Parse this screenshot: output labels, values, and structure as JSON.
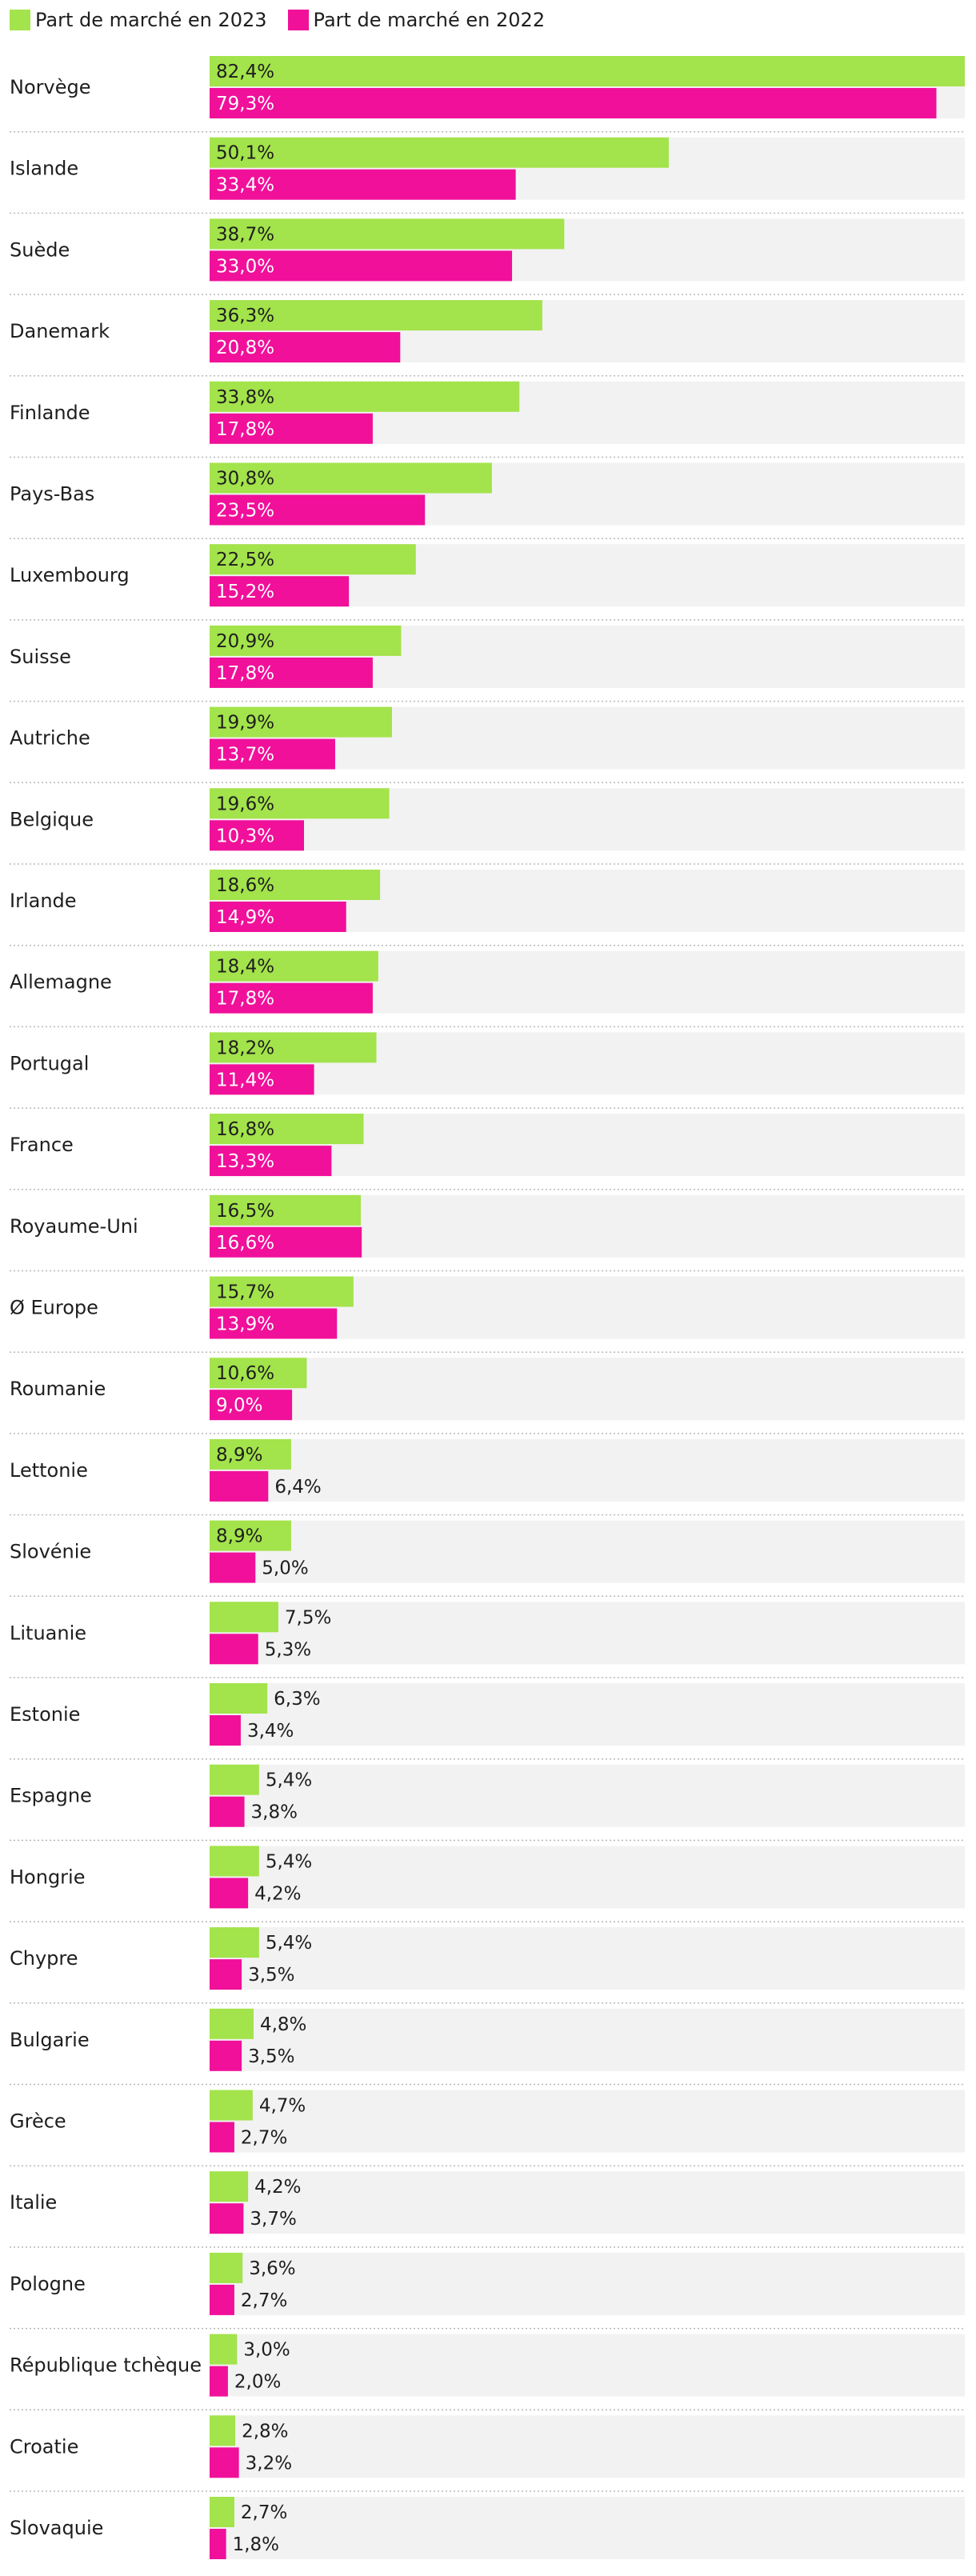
{
  "chart_data": {
    "type": "bar",
    "orientation": "horizontal",
    "title": "",
    "xlabel": "",
    "ylabel": "",
    "xlim": [
      0,
      82.4
    ],
    "grid": false,
    "legend_position": "top-left",
    "colors": {
      "series_2023": "#a3e34b",
      "series_2022": "#f0109a",
      "row_background": "#f2f2f2",
      "separator": "#b8b8b8",
      "text_dark": "#1e1e1e",
      "text_light": "#ffffff"
    },
    "categories": [
      "Norvège",
      "Islande",
      "Suède",
      "Danemark",
      "Finlande",
      "Pays-Bas",
      "Luxembourg",
      "Suisse",
      "Autriche",
      "Belgique",
      "Irlande",
      "Allemagne",
      "Portugal",
      "France",
      "Royaume-Uni",
      "Ø Europe",
      "Roumanie",
      "Lettonie",
      "Slovénie",
      "Lituanie",
      "Estonie",
      "Espagne",
      "Hongrie",
      "Chypre",
      "Bulgarie",
      "Grèce",
      "Italie",
      "Pologne",
      "République tchèque",
      "Croatie",
      "Slovaquie"
    ],
    "series": [
      {
        "name": "Part de marché en 2023",
        "values": [
          82.4,
          50.1,
          38.7,
          36.3,
          33.8,
          30.8,
          22.5,
          20.9,
          19.9,
          19.6,
          18.6,
          18.4,
          18.2,
          16.8,
          16.5,
          15.7,
          10.6,
          8.9,
          8.9,
          7.5,
          6.3,
          5.4,
          5.4,
          5.4,
          4.8,
          4.7,
          4.2,
          3.6,
          3.0,
          2.8,
          2.7
        ],
        "labels": [
          "82,4%",
          "50,1%",
          "38,7%",
          "36,3%",
          "33,8%",
          "30,8%",
          "22,5%",
          "20,9%",
          "19,9%",
          "19,6%",
          "18,6%",
          "18,4%",
          "18,2%",
          "16,8%",
          "16,5%",
          "15,7%",
          "10,6%",
          "8,9%",
          "8,9%",
          "7,5%",
          "6,3%",
          "5,4%",
          "5,4%",
          "5,4%",
          "4,8%",
          "4,7%",
          "4,2%",
          "3,6%",
          "3,0%",
          "2,8%",
          "2,7%"
        ]
      },
      {
        "name": "Part de marché en 2022",
        "values": [
          79.3,
          33.4,
          33.0,
          20.8,
          17.8,
          23.5,
          15.2,
          17.8,
          13.7,
          10.3,
          14.9,
          17.8,
          11.4,
          13.3,
          16.6,
          13.9,
          9.0,
          6.4,
          5.0,
          5.3,
          3.4,
          3.8,
          4.2,
          3.5,
          3.5,
          2.7,
          3.7,
          2.7,
          2.0,
          3.2,
          1.8
        ],
        "labels": [
          "79,3%",
          "33,4%",
          "33,0%",
          "20,8%",
          "17,8%",
          "23,5%",
          "15,2%",
          "17,8%",
          "13,7%",
          "10,3%",
          "14,9%",
          "17,8%",
          "11,4%",
          "13,3%",
          "16,6%",
          "13,9%",
          "9,0%",
          "6,4%",
          "5,0%",
          "5,3%",
          "3,4%",
          "3,8%",
          "4,2%",
          "3,5%",
          "3,5%",
          "2,7%",
          "3,7%",
          "2,7%",
          "2,0%",
          "3,2%",
          "1,8%"
        ]
      }
    ]
  }
}
